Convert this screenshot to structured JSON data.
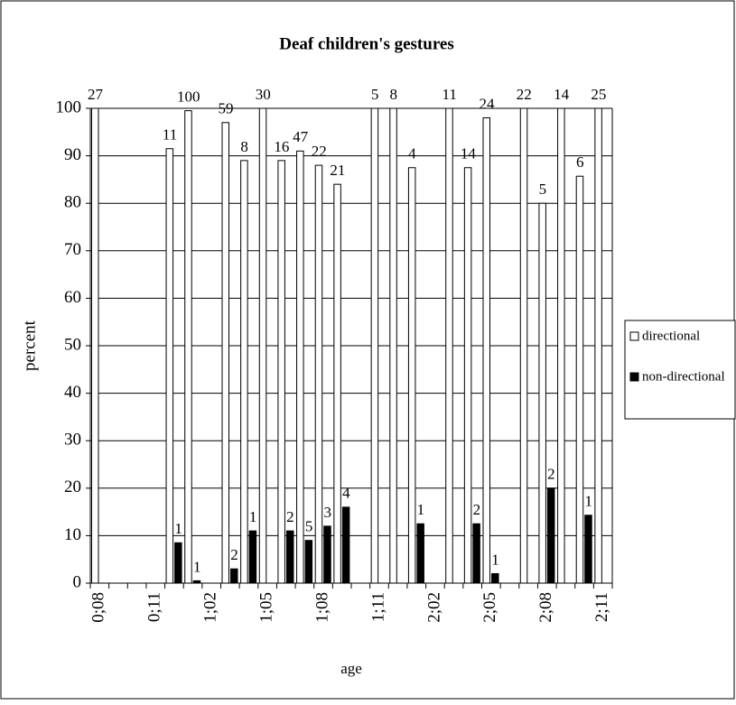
{
  "chart_data": {
    "type": "bar",
    "title": "Deaf children's gestures",
    "x_label": "age",
    "y_label": "percent",
    "categories": [
      "0;08",
      null,
      null,
      "0;11",
      null,
      null,
      "1;02",
      null,
      null,
      "1;05",
      null,
      null,
      "1;08",
      null,
      null,
      "1;11",
      null,
      null,
      "2;02",
      null,
      null,
      "2;05",
      null,
      null,
      "2;08",
      null,
      null,
      "2;11"
    ],
    "series": [
      {
        "name": "directional",
        "color": "#ffffff",
        "values": [
          100,
          null,
          null,
          null,
          91.5,
          99.5,
          null,
          97,
          89,
          100,
          89,
          91,
          88,
          84,
          null,
          100,
          100,
          87.5,
          null,
          100,
          87.5,
          98,
          null,
          100,
          80,
          100,
          85.7,
          100
        ],
        "value_labels": [
          "27",
          null,
          null,
          null,
          "11",
          "100",
          null,
          "59",
          "8",
          "30",
          "16",
          "47",
          "22",
          "21",
          null,
          "5",
          "8",
          "4",
          null,
          "11",
          "14",
          "24",
          null,
          "22",
          "5",
          "14",
          "6",
          "25"
        ]
      },
      {
        "name": "non-directional",
        "color": "#000000",
        "values": [
          null,
          null,
          null,
          null,
          8.5,
          0.5,
          null,
          3,
          11,
          null,
          11,
          9,
          12,
          16,
          null,
          null,
          null,
          12.5,
          null,
          null,
          12.5,
          2,
          null,
          null,
          20,
          null,
          14.3,
          null
        ],
        "value_labels": [
          null,
          null,
          null,
          null,
          "1",
          "1",
          null,
          "2",
          "1",
          null,
          "2",
          "5",
          "3",
          "4",
          null,
          null,
          null,
          "1",
          null,
          null,
          "2",
          "1",
          null,
          null,
          "2",
          null,
          "1",
          null
        ]
      }
    ],
    "ylim": [
      0,
      100
    ],
    "yticks": [
      0,
      10,
      20,
      30,
      40,
      50,
      60,
      70,
      80,
      90,
      100
    ],
    "grid": true,
    "legend": "right"
  }
}
